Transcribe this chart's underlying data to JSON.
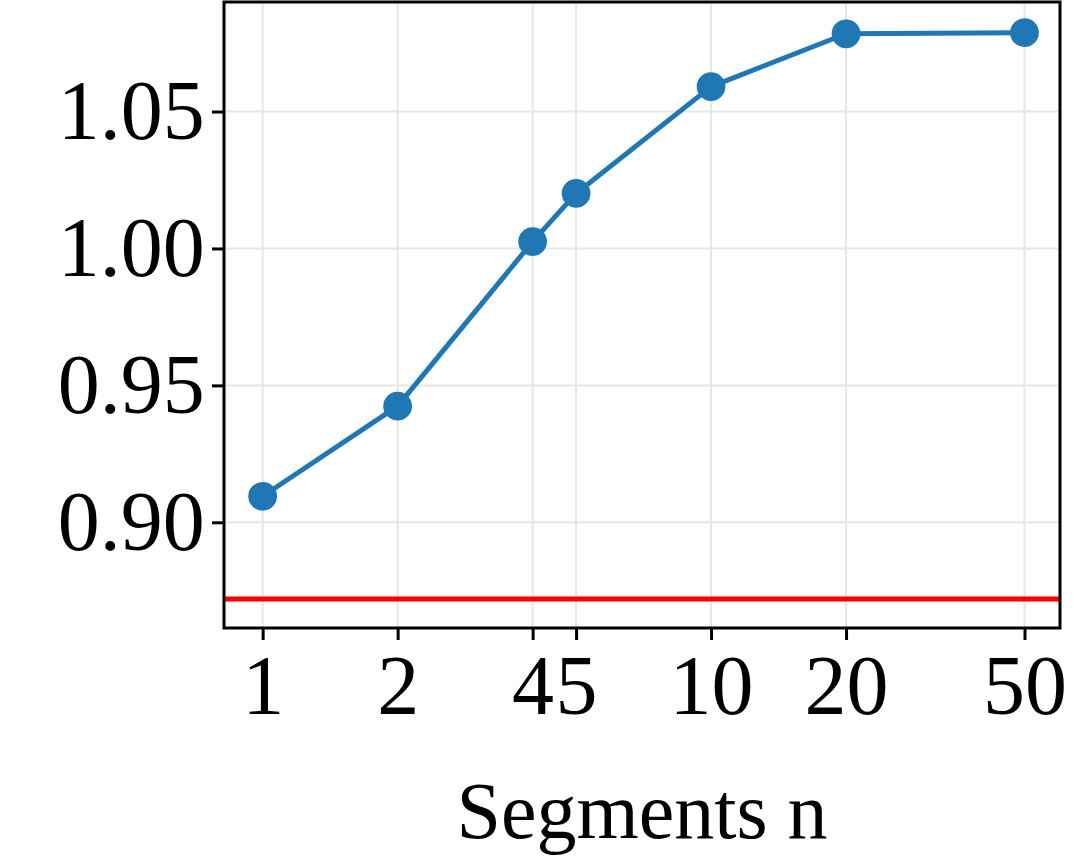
{
  "chart_data": {
    "type": "line",
    "xlabel": "Segments n",
    "log": "x",
    "x": [
      1,
      2,
      4,
      5,
      10,
      20,
      50
    ],
    "series": [
      {
        "color": "#1f77b4",
        "values": [
          0.9095,
          0.9424,
          1.0025,
          1.0201,
          1.0591,
          1.0784,
          1.0788
        ]
      }
    ],
    "xlim": [
      0.82,
      60
    ],
    "xticks": [
      1,
      2,
      4,
      5,
      10,
      20,
      50
    ],
    "ylim": [
      0.8614,
      1.09
    ],
    "yticks": [
      {
        "value": 0.9,
        "label": "0.90"
      },
      {
        "value": 0.95,
        "label": "0.95"
      },
      {
        "value": 1.0,
        "label": "1.00"
      },
      {
        "value": 1.05,
        "label": "1.05"
      }
    ],
    "ref_lines": [
      {
        "axis": "y",
        "value": 0.872,
        "color": "#ff0000"
      }
    ],
    "grid": true,
    "marker": "circle",
    "line_style": "solid"
  }
}
